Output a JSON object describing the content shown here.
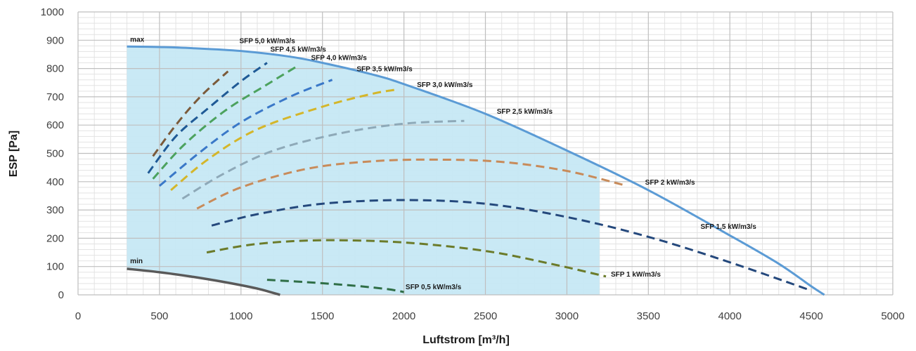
{
  "chart_data": {
    "type": "line",
    "xlabel": "Luftstrom [m³/h]",
    "ylabel": "ESP [Pa]",
    "xlim": [
      0,
      5000
    ],
    "ylim": [
      0,
      1000
    ],
    "x_ticks": [
      "0",
      "500",
      "1000",
      "1500",
      "2000",
      "2500",
      "3000",
      "3500",
      "4000",
      "4500",
      "5000"
    ],
    "y_ticks": [
      "0",
      "100",
      "200",
      "300",
      "400",
      "500",
      "600",
      "700",
      "800",
      "900",
      "1000"
    ],
    "grid": true,
    "colors": {
      "operating_area": "#c6e8f4",
      "max_curve": "#5b9bd5",
      "min_curve": "#595959",
      "grid_major": "#bfbfbf",
      "grid_minor": "#e3e3e3"
    },
    "operating_area": {
      "x_range": [
        300,
        3200
      ],
      "upper": "max",
      "lower": "min"
    },
    "max_curve": {
      "name": "max",
      "color": "#5b9bd5",
      "x": [
        300,
        500,
        700,
        1000,
        1300,
        1500,
        1800,
        2000,
        2500,
        3000,
        3500,
        4000,
        4300,
        4500,
        4580
      ],
      "y": [
        878,
        876,
        872,
        862,
        842,
        820,
        780,
        745,
        640,
        510,
        370,
        210,
        110,
        30,
        0
      ]
    },
    "min_curve": {
      "name": "min",
      "color": "#595959",
      "x": [
        300,
        500,
        700,
        900,
        1100,
        1240
      ],
      "y": [
        92,
        80,
        64,
        45,
        22,
        0
      ]
    },
    "series": [
      {
        "name": "SFP 5,0 kW/m3/s",
        "color": "#7b5a3a",
        "x": [
          460,
          600,
          750,
          920
        ],
        "y": [
          490,
          600,
          700,
          790
        ]
      },
      {
        "name": "SFP 4,5 kW/m3/s",
        "color": "#1f5a96",
        "x": [
          430,
          600,
          800,
          1000,
          1160
        ],
        "y": [
          430,
          560,
          660,
          755,
          820
        ]
      },
      {
        "name": "SFP 4,0 kW/m3/s",
        "color": "#4ca25e",
        "x": [
          460,
          650,
          900,
          1150,
          1350
        ],
        "y": [
          410,
          530,
          650,
          740,
          810
        ]
      },
      {
        "name": "SFP 3,5 kW/m3/s",
        "color": "#3a78c8",
        "x": [
          500,
          750,
          1000,
          1300,
          1560
        ],
        "y": [
          385,
          505,
          610,
          700,
          760
        ]
      },
      {
        "name": "SFP 3,0 kW/m3/s",
        "color": "#d4b62a",
        "x": [
          570,
          800,
          1100,
          1500,
          1800,
          1950
        ],
        "y": [
          370,
          480,
          585,
          665,
          710,
          725
        ]
      },
      {
        "name": "SFP 2,5 kW/m3/s",
        "color": "#8ea9b8",
        "x": [
          640,
          900,
          1200,
          1600,
          2000,
          2370
        ],
        "y": [
          340,
          430,
          510,
          570,
          605,
          615
        ]
      },
      {
        "name": "SFP 2 kW/m3/s",
        "color": "#c88b5a",
        "x": [
          730,
          1000,
          1400,
          1800,
          2200,
          2600,
          3000,
          3350
        ],
        "y": [
          305,
          380,
          445,
          472,
          478,
          470,
          438,
          388
        ]
      },
      {
        "name": "SFP 1,5 kW/m3/s",
        "color": "#24487c",
        "x": [
          820,
          1100,
          1500,
          2000,
          2500,
          3000,
          3500,
          4000,
          4500
        ],
        "y": [
          245,
          285,
          322,
          335,
          322,
          275,
          205,
          115,
          15
        ]
      },
      {
        "name": "SFP 1 kW/m3/s",
        "color": "#6b7b2a",
        "x": [
          790,
          1100,
          1500,
          2000,
          2500,
          2900,
          3240
        ],
        "y": [
          150,
          180,
          193,
          185,
          155,
          110,
          65
        ]
      },
      {
        "name": "SFP 0,5 kW/m3/s",
        "color": "#2f6e46",
        "x": [
          1160,
          1400,
          1700,
          1900,
          2000
        ],
        "y": [
          53,
          45,
          32,
          20,
          10
        ]
      }
    ],
    "annotations": [
      {
        "text": "max",
        "x": 320,
        "y": 905
      },
      {
        "text": "min",
        "x": 320,
        "y": 122
      },
      {
        "text": "SFP 5,0 kW/m3/s",
        "x": 990,
        "y": 900
      },
      {
        "text": "SFP 4,5 kW/m3/s",
        "x": 1180,
        "y": 870
      },
      {
        "text": "SFP 4,0 kW/m3/s",
        "x": 1430,
        "y": 840
      },
      {
        "text": "SFP 3,5 kW/m3/s",
        "x": 1710,
        "y": 800
      },
      {
        "text": "SFP 3,0 kW/m3/s",
        "x": 2080,
        "y": 745
      },
      {
        "text": "SFP 2,5 kW/m3/s",
        "x": 2570,
        "y": 650
      },
      {
        "text": "SFP 2 kW/m3/s",
        "x": 3480,
        "y": 400
      },
      {
        "text": "SFP 1,5 kW/m3/s",
        "x": 3820,
        "y": 243
      },
      {
        "text": "SFP 1 kW/m3/s",
        "x": 3270,
        "y": 75
      },
      {
        "text": "SFP 0,5 kW/m3/s",
        "x": 2010,
        "y": 30
      }
    ]
  }
}
